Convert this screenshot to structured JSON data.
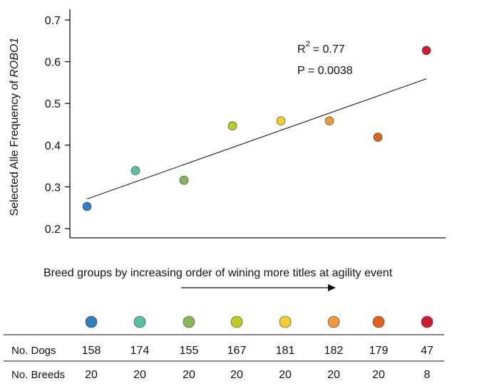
{
  "chart_data": {
    "type": "scatter",
    "title": "",
    "ylabel_prefix": "Selected Alle Frequency of ",
    "ylabel_gene": "ROBO1",
    "ylim": [
      0.18,
      0.72
    ],
    "yticks": [
      0.2,
      0.3,
      0.4,
      0.5,
      0.6,
      0.7
    ],
    "ytick_labels": [
      "0.2",
      "0.3",
      "0.4",
      "0.5",
      "0.6",
      "0.7"
    ],
    "grid": false,
    "xlim": [
      0.5,
      8.5
    ],
    "x": [
      1,
      2,
      3,
      4,
      5,
      6,
      7,
      8
    ],
    "y": [
      0.253,
      0.339,
      0.316,
      0.446,
      0.458,
      0.458,
      0.419,
      0.627
    ],
    "colors": [
      "#2e7fc4",
      "#5bbfa6",
      "#86b95a",
      "#bccc25",
      "#f4cc34",
      "#ed9a3e",
      "#e2621b",
      "#d01a36"
    ],
    "trendline": {
      "x": [
        1,
        8
      ],
      "y": [
        0.271,
        0.559
      ]
    },
    "annotations": {
      "r2_base": "R",
      "r2_sup": "2",
      "r2_value": "= 0.77",
      "p": "P = 0.0038"
    },
    "xlabel": "Breed groups by increasing order of wining more titles at agility event"
  },
  "table": {
    "row_labels": [
      "No. Dogs",
      "No. Breeds"
    ],
    "dogs": [
      "158",
      "174",
      "155",
      "167",
      "181",
      "182",
      "179",
      "47"
    ],
    "breeds": [
      "20",
      "20",
      "20",
      "20",
      "20",
      "20",
      "20",
      "8"
    ]
  }
}
